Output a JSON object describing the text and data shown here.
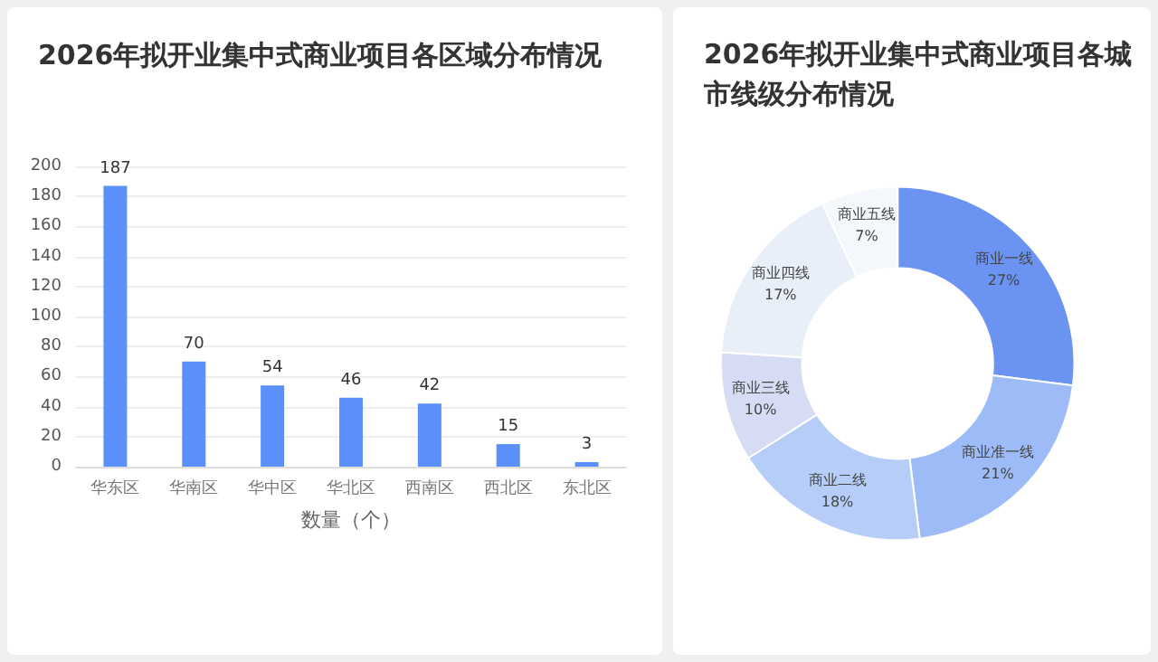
{
  "chart_data": [
    {
      "type": "bar",
      "title": "2026年拟开业集中式商业项目各区域分布情况",
      "xlabel": "数量（个）",
      "categories": [
        "华东区",
        "华南区",
        "华中区",
        "华北区",
        "西南区",
        "西北区",
        "东北区"
      ],
      "values": [
        187,
        70,
        54,
        46,
        42,
        15,
        3
      ],
      "color": "#5b8ff9",
      "ylim": [
        0,
        200
      ],
      "yticks": [
        0,
        20,
        40,
        60,
        80,
        100,
        120,
        140,
        160,
        180,
        200
      ],
      "grid": "y",
      "data_labels": true
    },
    {
      "type": "donut",
      "title": "2026年拟开业集中式商业项目各城市线级分布情况",
      "categories": [
        "商业一线",
        "商业准一线",
        "商业二线",
        "商业三线",
        "商业四线",
        "商业五线"
      ],
      "values": [
        27,
        21,
        18,
        10,
        17,
        7
      ],
      "colors": [
        "#6b94f2",
        "#9dbcf7",
        "#b5cdf7",
        "#d6dcf3",
        "#e8eff9",
        "#f4f7fc"
      ],
      "value_labels": [
        "27%",
        "21%",
        "18%",
        "10%",
        "17%",
        "7%"
      ]
    }
  ]
}
